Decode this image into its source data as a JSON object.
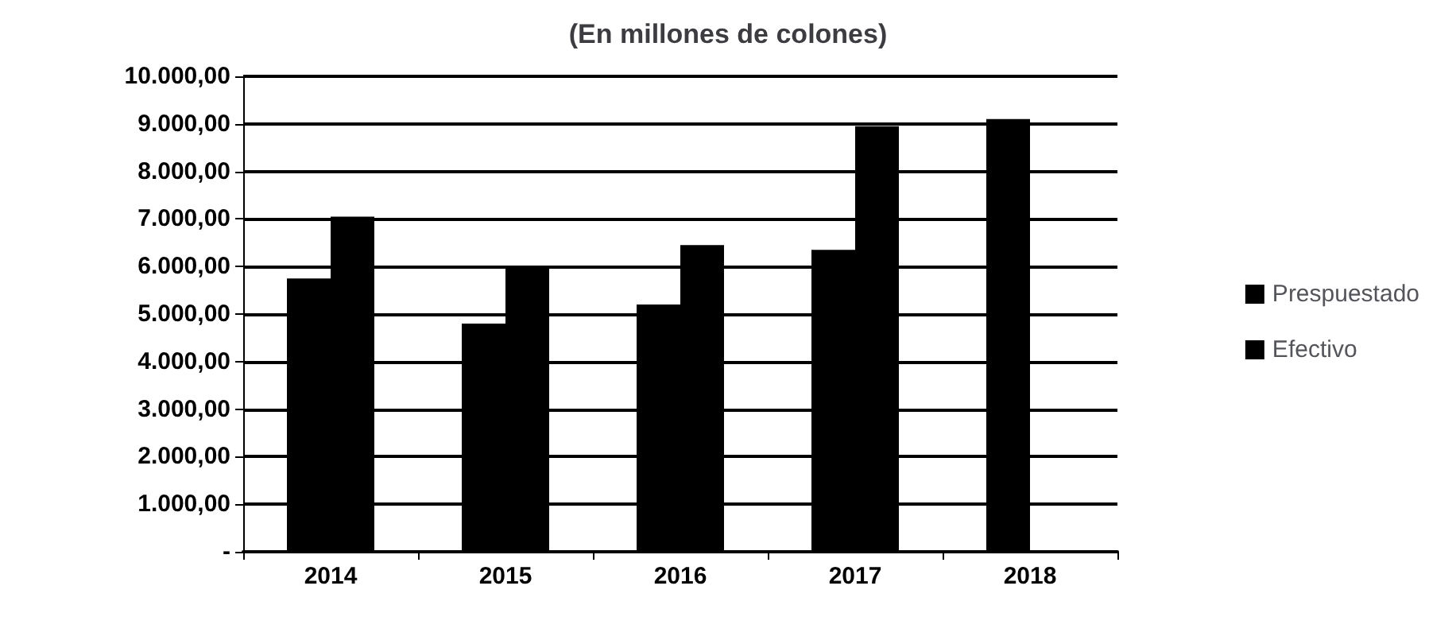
{
  "chart_data": {
    "type": "bar",
    "title": "(En millones de colones)",
    "categories": [
      "2014",
      "2015",
      "2016",
      "2017",
      "2018"
    ],
    "series": [
      {
        "name": "Prespuestado",
        "color": "#000000",
        "values": [
          5750,
          4800,
          5200,
          6350,
          9100
        ]
      },
      {
        "name": "Efectivo",
        "color": "#000000",
        "values": [
          7050,
          6000,
          6450,
          8950,
          null
        ]
      }
    ],
    "ylim": [
      0,
      10000
    ],
    "yticks": [
      {
        "value": 0,
        "label": "-"
      },
      {
        "value": 1000,
        "label": "1.000,00"
      },
      {
        "value": 2000,
        "label": "2.000,00"
      },
      {
        "value": 3000,
        "label": "3.000,00"
      },
      {
        "value": 4000,
        "label": "4.000,00"
      },
      {
        "value": 5000,
        "label": "5.000,00"
      },
      {
        "value": 6000,
        "label": "6.000,00"
      },
      {
        "value": 7000,
        "label": "7.000,00"
      },
      {
        "value": 8000,
        "label": "8.000,00"
      },
      {
        "value": 9000,
        "label": "9.000,00"
      },
      {
        "value": 10000,
        "label": "10.000,00"
      }
    ],
    "grid": "y",
    "legend": "right"
  }
}
